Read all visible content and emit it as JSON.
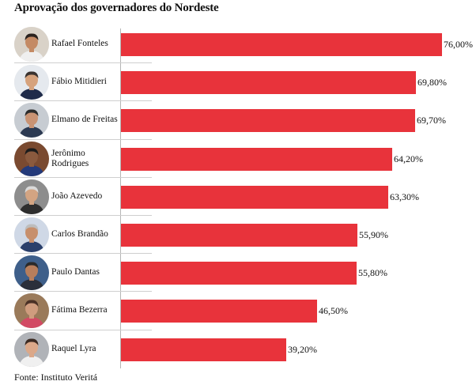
{
  "title": "Aprovação dos governadores do Nordeste",
  "source": "Fonte: Instituto Veritá",
  "chart_data": {
    "type": "bar",
    "orientation": "horizontal",
    "title": "Aprovação dos governadores do Nordeste",
    "categories": [
      "Rafael Fonteles",
      "Fábio Mitidieri",
      "Elmano de Freitas",
      "Jerônimo Rodrigues",
      "João Azevedo",
      "Carlos Brandão",
      "Paulo Dantas",
      "Fátima Bezerra",
      "Raquel Lyra"
    ],
    "name_lines": [
      [
        "Rafael Fonteles"
      ],
      [
        "Fábio Mitidieri"
      ],
      [
        "Elmano de Freitas"
      ],
      [
        "Jerônimo",
        "Rodrigues"
      ],
      [
        "João Azevedo"
      ],
      [
        "Carlos Brandão"
      ],
      [
        "Paulo Dantas"
      ],
      [
        "Fátima Bezerra"
      ],
      [
        "Raquel Lyra"
      ]
    ],
    "values": [
      76.0,
      69.8,
      69.7,
      64.2,
      63.3,
      55.9,
      55.8,
      46.5,
      39.2
    ],
    "value_labels": [
      "76,00%",
      "69,80%",
      "69,70%",
      "64,20%",
      "63,30%",
      "55,90%",
      "55,80%",
      "46,50%",
      "39,20%"
    ],
    "xlim": [
      0,
      76.0
    ],
    "bar_color": "#e8333b",
    "grid": false,
    "legend": "none"
  }
}
